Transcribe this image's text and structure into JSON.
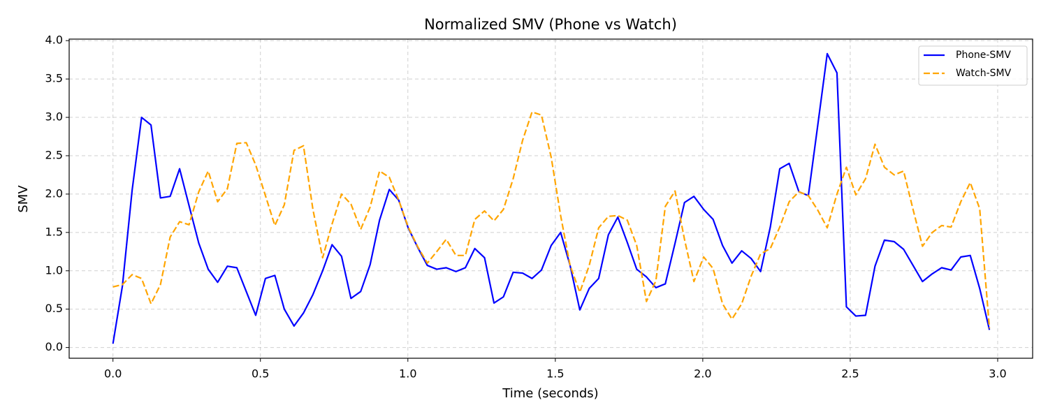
{
  "chart_data": {
    "type": "line",
    "title": "Normalized SMV (Phone vs Watch)",
    "x_label": "Time (seconds)",
    "y_label": "SMV",
    "x": [
      0,
      0.032,
      0.065,
      0.097,
      0.129,
      0.161,
      0.194,
      0.226,
      0.258,
      0.291,
      0.323,
      0.355,
      0.388,
      0.42,
      0.452,
      0.484,
      0.517,
      0.549,
      0.581,
      0.614,
      0.646,
      0.678,
      0.711,
      0.743,
      0.775,
      0.807,
      0.84,
      0.872,
      0.904,
      0.937,
      0.969,
      1.001,
      1.034,
      1.066,
      1.098,
      1.13,
      1.163,
      1.195,
      1.227,
      1.26,
      1.292,
      1.324,
      1.357,
      1.389,
      1.421,
      1.453,
      1.486,
      1.518,
      1.55,
      1.583,
      1.615,
      1.647,
      1.68,
      1.712,
      1.744,
      1.776,
      1.809,
      1.841,
      1.873,
      1.906,
      1.938,
      1.97,
      2.003,
      2.035,
      2.067,
      2.099,
      2.132,
      2.164,
      2.196,
      2.229,
      2.261,
      2.293,
      2.326,
      2.358,
      2.39,
      2.422,
      2.455,
      2.487,
      2.519,
      2.552,
      2.584,
      2.616,
      2.649,
      2.681,
      2.713,
      2.745,
      2.778,
      2.81,
      2.842,
      2.875,
      2.907,
      2.939,
      2.972
    ],
    "series": [
      {
        "name": "Phone-SMV",
        "color": "#0000ff",
        "dash": "solid",
        "values": [
          0.05,
          0.8,
          2.05,
          3.0,
          2.9,
          1.95,
          1.97,
          2.33,
          1.85,
          1.36,
          1.02,
          0.85,
          1.06,
          1.04,
          0.73,
          0.42,
          0.9,
          0.94,
          0.5,
          0.28,
          0.45,
          0.69,
          1.0,
          1.34,
          1.19,
          0.64,
          0.73,
          1.08,
          1.66,
          2.06,
          1.92,
          1.56,
          1.3,
          1.07,
          1.02,
          1.04,
          0.99,
          1.04,
          1.29,
          1.17,
          0.58,
          0.66,
          0.98,
          0.97,
          0.9,
          1.01,
          1.33,
          1.5,
          1.07,
          0.49,
          0.77,
          0.9,
          1.47,
          1.7,
          1.37,
          1.02,
          0.92,
          0.78,
          0.83,
          1.36,
          1.89,
          1.97,
          1.8,
          1.67,
          1.33,
          1.1,
          1.26,
          1.16,
          0.99,
          1.57,
          2.33,
          2.4,
          2.03,
          1.98,
          2.9,
          3.83,
          3.58,
          0.53,
          0.41,
          0.42,
          1.06,
          1.4,
          1.38,
          1.28,
          1.07,
          0.86,
          0.96,
          1.04,
          1.01,
          1.18,
          1.2,
          0.77,
          0.23
        ]
      },
      {
        "name": "Watch-SMV",
        "color": "#ffa500",
        "dash": "dashed",
        "values": [
          0.79,
          0.82,
          0.95,
          0.9,
          0.57,
          0.82,
          1.44,
          1.64,
          1.6,
          2.03,
          2.3,
          1.9,
          2.07,
          2.66,
          2.67,
          2.38,
          1.98,
          1.59,
          1.86,
          2.57,
          2.63,
          1.8,
          1.17,
          1.61,
          2.0,
          1.87,
          1.54,
          1.83,
          2.3,
          2.22,
          1.92,
          1.57,
          1.31,
          1.1,
          1.25,
          1.41,
          1.2,
          1.2,
          1.67,
          1.78,
          1.65,
          1.8,
          2.2,
          2.7,
          3.07,
          3.03,
          2.48,
          1.72,
          1.07,
          0.72,
          1.07,
          1.56,
          1.71,
          1.72,
          1.66,
          1.33,
          0.6,
          0.87,
          1.84,
          2.04,
          1.41,
          0.86,
          1.18,
          1.03,
          0.57,
          0.37,
          0.57,
          0.93,
          1.22,
          1.29,
          1.57,
          1.9,
          2.03,
          1.98,
          1.79,
          1.56,
          2.0,
          2.35,
          1.99,
          2.2,
          2.65,
          2.35,
          2.25,
          2.3,
          1.8,
          1.32,
          1.5,
          1.59,
          1.57,
          1.9,
          2.15,
          1.81,
          0.25
        ]
      }
    ],
    "xlim": [
      -0.1485,
      3.1185
    ],
    "ylim": [
      -0.14,
      4.02
    ],
    "xticks": [
      {
        "value": 0,
        "label": "0.0"
      },
      0.5,
      {
        "value": 1,
        "label": "1.0"
      },
      1.5,
      {
        "value": 2,
        "label": "2.0"
      },
      2.5,
      {
        "value": 3,
        "label": "3.0"
      }
    ],
    "yticks": [
      {
        "value": 0,
        "label": "0.0"
      },
      0.5,
      {
        "value": 1,
        "label": "1.0"
      },
      1.5,
      {
        "value": 2,
        "label": "2.0"
      },
      2.5,
      {
        "value": 3,
        "label": "3.0"
      },
      3.5,
      {
        "value": 4,
        "label": "4.0"
      }
    ],
    "grid": true,
    "legend": "upper right"
  }
}
